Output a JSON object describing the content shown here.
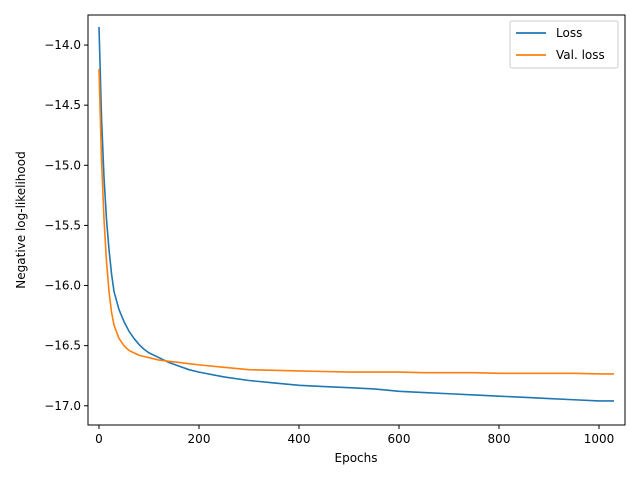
{
  "chart_data": {
    "type": "line",
    "title": "",
    "xlabel": "Epochs",
    "ylabel": "Negative log-likelihood",
    "xlim": [
      -22,
      1052
    ],
    "ylim": [
      -17.16,
      -13.75
    ],
    "xticks": [
      0,
      200,
      400,
      600,
      800,
      1000
    ],
    "xtick_labels": [
      "0",
      "200",
      "400",
      "600",
      "800",
      "1000"
    ],
    "yticks": [
      -14.0,
      -14.5,
      -15.0,
      -15.5,
      -16.0,
      -16.5,
      -17.0
    ],
    "ytick_labels": [
      "−14.0",
      "−14.5",
      "−15.0",
      "−15.5",
      "−16.0",
      "−16.5",
      "−17.0"
    ],
    "grid": false,
    "legend_position": "top-right",
    "series": [
      {
        "name": "Loss",
        "color": "#1f77b4",
        "x": [
          0,
          5,
          10,
          15,
          20,
          25,
          30,
          40,
          50,
          60,
          70,
          80,
          90,
          100,
          120,
          140,
          160,
          180,
          200,
          250,
          300,
          350,
          400,
          450,
          500,
          550,
          600,
          650,
          700,
          750,
          800,
          850,
          900,
          950,
          1000,
          1030
        ],
        "y": [
          -13.85,
          -14.6,
          -15.1,
          -15.45,
          -15.7,
          -15.9,
          -16.05,
          -16.2,
          -16.3,
          -16.38,
          -16.44,
          -16.49,
          -16.53,
          -16.56,
          -16.6,
          -16.64,
          -16.67,
          -16.7,
          -16.72,
          -16.76,
          -16.79,
          -16.81,
          -16.83,
          -16.84,
          -16.85,
          -16.86,
          -16.88,
          -16.89,
          -16.9,
          -16.91,
          -16.92,
          -16.93,
          -16.94,
          -16.95,
          -16.96,
          -16.96
        ]
      },
      {
        "name": "Val. loss",
        "color": "#ff7f0e",
        "x": [
          0,
          5,
          10,
          15,
          20,
          25,
          30,
          40,
          50,
          60,
          70,
          80,
          90,
          100,
          120,
          140,
          160,
          180,
          200,
          250,
          300,
          350,
          400,
          450,
          500,
          550,
          600,
          650,
          700,
          750,
          800,
          850,
          900,
          950,
          1000,
          1030
        ],
        "y": [
          -14.2,
          -14.95,
          -15.45,
          -15.8,
          -16.05,
          -16.22,
          -16.33,
          -16.44,
          -16.5,
          -16.54,
          -16.56,
          -16.58,
          -16.59,
          -16.6,
          -16.62,
          -16.63,
          -16.64,
          -16.65,
          -16.66,
          -16.68,
          -16.7,
          -16.705,
          -16.71,
          -16.715,
          -16.72,
          -16.72,
          -16.72,
          -16.725,
          -16.725,
          -16.725,
          -16.73,
          -16.73,
          -16.73,
          -16.73,
          -16.735,
          -16.735
        ]
      }
    ]
  }
}
